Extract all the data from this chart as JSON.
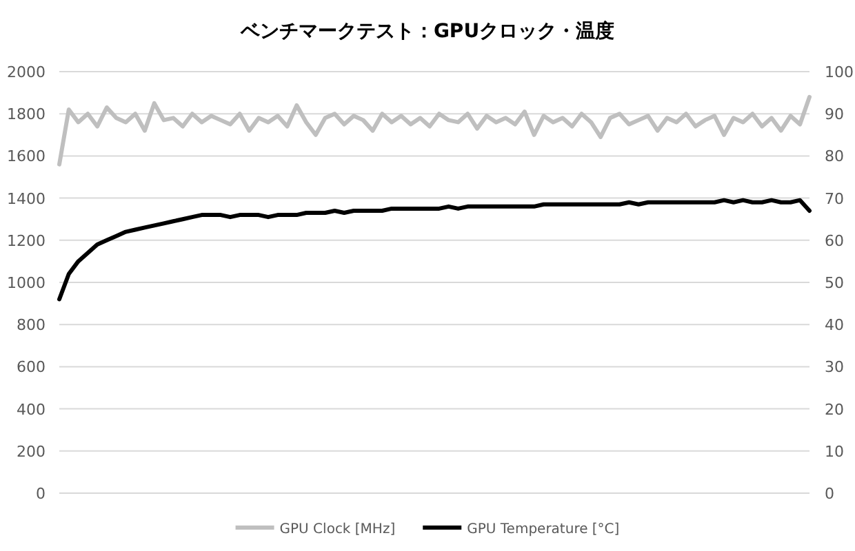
{
  "chart_data": {
    "type": "line",
    "title": "ベンチマークテスト：GPUクロック・温度",
    "categories": [
      null,
      null,
      null,
      null,
      null,
      null,
      null,
      null,
      null,
      null,
      null,
      null,
      null,
      null,
      null,
      null,
      null,
      null,
      null,
      null,
      null,
      null,
      null,
      null,
      null,
      null,
      null,
      null,
      null,
      null,
      null,
      null,
      null,
      null,
      null,
      null,
      null,
      null,
      null,
      null,
      null,
      null,
      null,
      null,
      null,
      null,
      null,
      null,
      null,
      null,
      null,
      null,
      null,
      null,
      null,
      null,
      null,
      null,
      null,
      null,
      null,
      null,
      null,
      null,
      null,
      null,
      null,
      null,
      null,
      null,
      null,
      null,
      null,
      null,
      null,
      null,
      null,
      null,
      null,
      null
    ],
    "series": [
      {
        "name": "GPU Clock [MHz]",
        "color": "#bfbfbf",
        "values": [
          1560,
          1820,
          1760,
          1800,
          1740,
          1830,
          1780,
          1760,
          1800,
          1720,
          1850,
          1770,
          1780,
          1740,
          1800,
          1760,
          1790,
          1770,
          1750,
          1800,
          1720,
          1780,
          1760,
          1790,
          1740,
          1840,
          1760,
          1700,
          1780,
          1800,
          1750,
          1790,
          1770,
          1720,
          1800,
          1760,
          1790,
          1750,
          1780,
          1740,
          1800,
          1770,
          1760,
          1800,
          1730,
          1790,
          1760,
          1780,
          1750,
          1810,
          1700,
          1790,
          1760,
          1780,
          1740,
          1800,
          1760,
          1690,
          1780,
          1800,
          1750,
          1770,
          1790,
          1720,
          1780,
          1760,
          1800,
          1740,
          1770,
          1790,
          1700,
          1780,
          1760,
          1800,
          1740,
          1780,
          1720,
          1790,
          1750,
          1880
        ]
      },
      {
        "name": "GPU Temperature [°C]",
        "color": "#000000",
        "axis": "y2",
        "values": [
          46,
          52,
          55,
          57,
          59,
          60,
          61,
          62,
          62.5,
          63,
          63.5,
          64,
          64.5,
          65,
          65.5,
          66,
          66,
          66,
          65.5,
          66,
          66,
          66,
          65.5,
          66,
          66,
          66,
          66.5,
          66.5,
          66.5,
          67,
          66.5,
          67,
          67,
          67,
          67,
          67.5,
          67.5,
          67.5,
          67.5,
          67.5,
          67.5,
          68,
          67.5,
          68,
          68,
          68,
          68,
          68,
          68,
          68,
          68,
          68.5,
          68.5,
          68.5,
          68.5,
          68.5,
          68.5,
          68.5,
          68.5,
          68.5,
          69,
          68.5,
          69,
          69,
          69,
          69,
          69,
          69,
          69,
          69,
          69.5,
          69,
          69.5,
          69,
          69,
          69.5,
          69,
          69,
          69.5,
          67
        ]
      }
    ],
    "ylim": [
      0,
      2000
    ],
    "yticks": [
      0,
      200,
      400,
      600,
      800,
      1000,
      1200,
      1400,
      1600,
      1800,
      2000
    ],
    "y2lim": [
      0,
      100
    ],
    "y2ticks": [
      0,
      10,
      20,
      30,
      40,
      50,
      60,
      70,
      80,
      90,
      100
    ],
    "grid": "y",
    "legend": "bottom"
  }
}
